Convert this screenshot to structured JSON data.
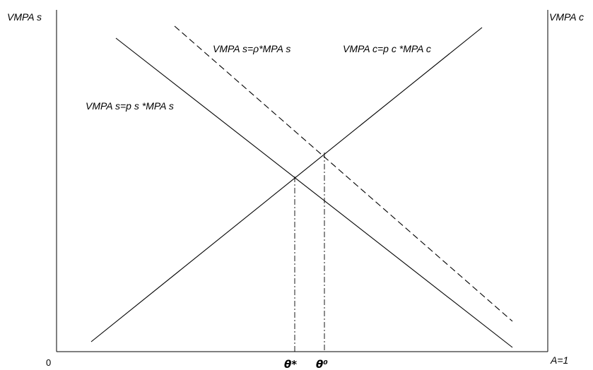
{
  "axes": {
    "y_left_label": "VMPA s",
    "y_right_label": "VMPA c",
    "origin_label": "0",
    "x_right_label": "A=1"
  },
  "curves": {
    "social_label": "VMPA s=ρ*MPA s",
    "private_label": "VMPA s=p s *MPA s",
    "conservation_label": "VMPA c=p c *MPA c"
  },
  "markers": {
    "theta_star": "θ*",
    "theta_zero": "θ⁰"
  }
}
